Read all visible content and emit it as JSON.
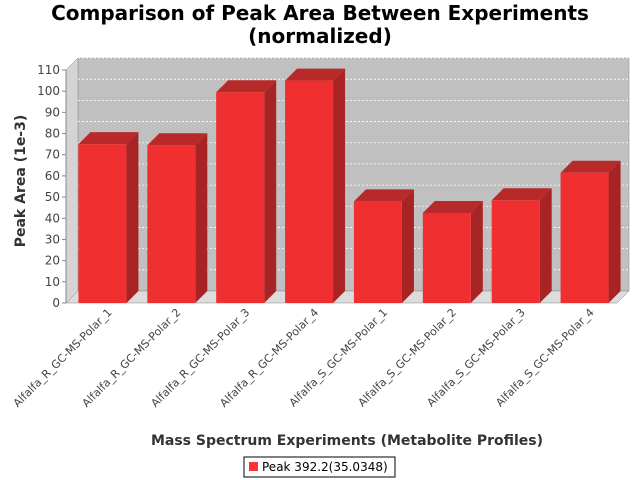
{
  "chart_data": {
    "type": "bar",
    "title_line1": "Comparison of Peak Area Between Experiments",
    "title_line2": "(normalized)",
    "xlabel": "Mass Spectrum Experiments (Metabolite Profiles)",
    "ylabel": "Peak Area (1e-3)",
    "ylim": [
      0,
      110
    ],
    "yticks": [
      0,
      10,
      20,
      30,
      40,
      50,
      60,
      70,
      80,
      90,
      100,
      110
    ],
    "grid": true,
    "legend_position": "bottom",
    "categories": [
      "Alfalfa_R_GC-MS-Polar_1",
      "Alfalfa_R_GC-MS-Polar_2",
      "Alfalfa_R_GC-MS-Polar_3",
      "Alfalfa_R_GC-MS-Polar_4",
      "Alfalfa_S_GC-MS-Polar_1",
      "Alfalfa_S_GC-MS-Polar_2",
      "Alfalfa_S_GC-MS-Polar_3",
      "Alfalfa_S_GC-MS-Polar_4"
    ],
    "series": [
      {
        "name": "Peak 392.2(35.0348)",
        "color": "#ff3333",
        "values": [
          75,
          74.5,
          99.5,
          105,
          48,
          42.5,
          48.5,
          61.5
        ]
      }
    ]
  },
  "colors": {
    "plot_background": "#c0c0c0",
    "bar_front": "#f03030",
    "bar_top": "#b82a2a",
    "bar_side": "#a82424"
  }
}
